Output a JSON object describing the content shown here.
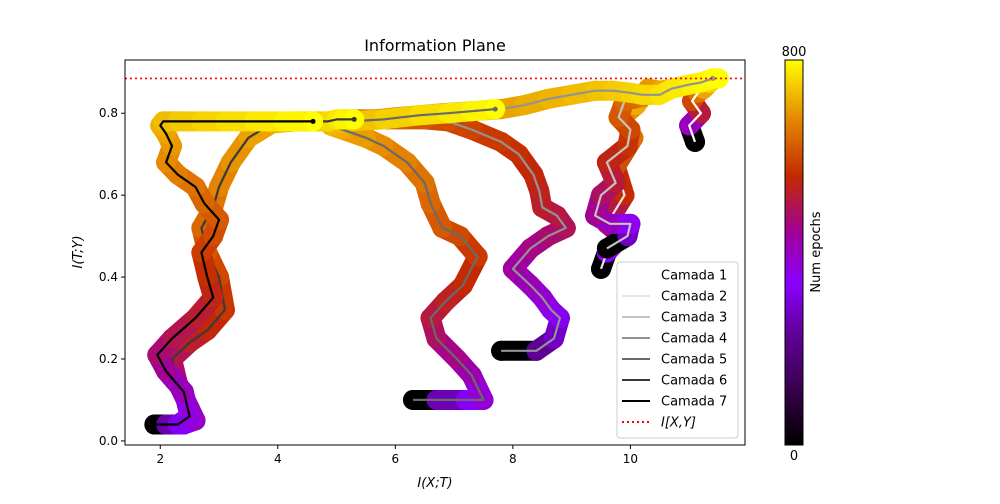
{
  "chart_data": {
    "type": "line",
    "title": "Information Plane",
    "xlabel": "I(X;T)",
    "ylabel": "I(T;Y)",
    "xlim": [
      1.4,
      11.95
    ],
    "ylim": [
      -0.01,
      0.93
    ],
    "xticks": [
      2,
      4,
      6,
      8,
      10
    ],
    "yticks": [
      0.0,
      0.2,
      0.4,
      0.6,
      0.8
    ],
    "grid": false,
    "legend_position": "lower-right",
    "reference_line": {
      "name": "I[X,Y]",
      "y": 0.885,
      "color": "#ff0000",
      "style": "dotted"
    },
    "colorbar": {
      "label": "Num epochs",
      "min": 0,
      "max": 800,
      "colormap": "gnuplot"
    },
    "series": [
      {
        "name": "Camada 1",
        "color": "#ffffff",
        "x": [
          11.1,
          11.0,
          11.2,
          11.05,
          11.15,
          11.25,
          11.35,
          11.45
        ],
        "y": [
          0.73,
          0.77,
          0.8,
          0.83,
          0.85,
          0.86,
          0.875,
          0.885
        ]
      },
      {
        "name": "Camada 2",
        "color": "#e6e6e6",
        "x": [
          9.5,
          9.6,
          9.85,
          9.6,
          9.9,
          9.75,
          10.05,
          9.85,
          10.1,
          10.2,
          10.35,
          10.4
        ],
        "y": [
          0.42,
          0.46,
          0.5,
          0.53,
          0.6,
          0.67,
          0.74,
          0.79,
          0.82,
          0.84,
          0.85,
          0.855
        ]
      },
      {
        "name": "Camada 3",
        "color": "#c3c3c3",
        "x": [
          9.6,
          9.95,
          10.0,
          9.65,
          9.4,
          9.5,
          9.75,
          9.6,
          9.95,
          10.0,
          9.8,
          9.9,
          10.2,
          10.35,
          10.3,
          10.5,
          10.7,
          11.0,
          11.2,
          11.3,
          11.4,
          11.5
        ],
        "y": [
          0.47,
          0.5,
          0.53,
          0.53,
          0.55,
          0.6,
          0.63,
          0.68,
          0.72,
          0.76,
          0.79,
          0.83,
          0.84,
          0.85,
          0.86,
          0.855,
          0.86,
          0.87,
          0.875,
          0.88,
          0.885,
          0.885
        ]
      },
      {
        "name": "Camada 4",
        "color": "#939393",
        "x": [
          7.8,
          8.4,
          8.7,
          8.8,
          8.65,
          8.5,
          8.3,
          8.0,
          8.3,
          8.6,
          8.9,
          8.75,
          8.5,
          8.45,
          8.35,
          8.1,
          7.8,
          7.3,
          6.9,
          6.5,
          6.1,
          5.8,
          5.4,
          5.1,
          5.3,
          6.0,
          6.8,
          7.3,
          7.8,
          8.2,
          8.6,
          9.0,
          9.4,
          9.7,
          10.0,
          10.2,
          10.5,
          10.7,
          11.0,
          11.2,
          11.4
        ],
        "y": [
          0.22,
          0.22,
          0.25,
          0.3,
          0.32,
          0.35,
          0.38,
          0.42,
          0.47,
          0.5,
          0.52,
          0.55,
          0.57,
          0.61,
          0.65,
          0.7,
          0.73,
          0.76,
          0.78,
          0.785,
          0.785,
          0.785,
          0.785,
          0.785,
          0.78,
          0.79,
          0.8,
          0.805,
          0.81,
          0.82,
          0.835,
          0.845,
          0.855,
          0.855,
          0.85,
          0.845,
          0.845,
          0.86,
          0.87,
          0.875,
          0.885
        ]
      },
      {
        "name": "Camada 5",
        "color": "#6a6a6a",
        "x": [
          6.3,
          6.7,
          7.2,
          7.5,
          7.3,
          7.05,
          6.7,
          6.6,
          6.85,
          7.15,
          7.4,
          7.1,
          6.8,
          6.6,
          6.5,
          6.2,
          5.8,
          5.5,
          5.1,
          4.9,
          5.2,
          5.8,
          6.4,
          6.9,
          7.3,
          7.7
        ],
        "y": [
          0.1,
          0.1,
          0.1,
          0.1,
          0.16,
          0.2,
          0.25,
          0.3,
          0.34,
          0.38,
          0.45,
          0.5,
          0.52,
          0.58,
          0.63,
          0.68,
          0.72,
          0.74,
          0.76,
          0.77,
          0.78,
          0.785,
          0.795,
          0.8,
          0.805,
          0.81
        ]
      },
      {
        "name": "Camada 6",
        "color": "#3a3a3a",
        "x": [
          2.0,
          2.2,
          2.4,
          2.6,
          2.5,
          2.3,
          2.2,
          2.5,
          2.8,
          3.1,
          3.0,
          2.8,
          2.7,
          2.9,
          3.0,
          3.2,
          3.5,
          3.9,
          4.3,
          4.7,
          4.85,
          5.0,
          5.1,
          5.3
        ],
        "y": [
          0.04,
          0.04,
          0.04,
          0.05,
          0.08,
          0.14,
          0.2,
          0.24,
          0.27,
          0.32,
          0.4,
          0.46,
          0.52,
          0.57,
          0.62,
          0.68,
          0.74,
          0.775,
          0.78,
          0.78,
          0.78,
          0.785,
          0.785,
          0.785
        ]
      },
      {
        "name": "Camada 7",
        "color": "#000000",
        "x": [
          1.9,
          2.1,
          2.3,
          2.5,
          2.4,
          2.1,
          1.95,
          2.2,
          2.6,
          2.9,
          2.8,
          2.7,
          2.9,
          3.0,
          2.75,
          2.6,
          2.3,
          2.1,
          2.2,
          2.1,
          2.0,
          2.05,
          2.3,
          2.7,
          3.1,
          3.6,
          4.1,
          4.6
        ],
        "y": [
          0.04,
          0.04,
          0.04,
          0.06,
          0.12,
          0.17,
          0.21,
          0.25,
          0.3,
          0.35,
          0.4,
          0.46,
          0.5,
          0.54,
          0.58,
          0.62,
          0.65,
          0.68,
          0.72,
          0.75,
          0.77,
          0.78,
          0.78,
          0.78,
          0.78,
          0.78,
          0.78,
          0.78
        ]
      }
    ]
  }
}
